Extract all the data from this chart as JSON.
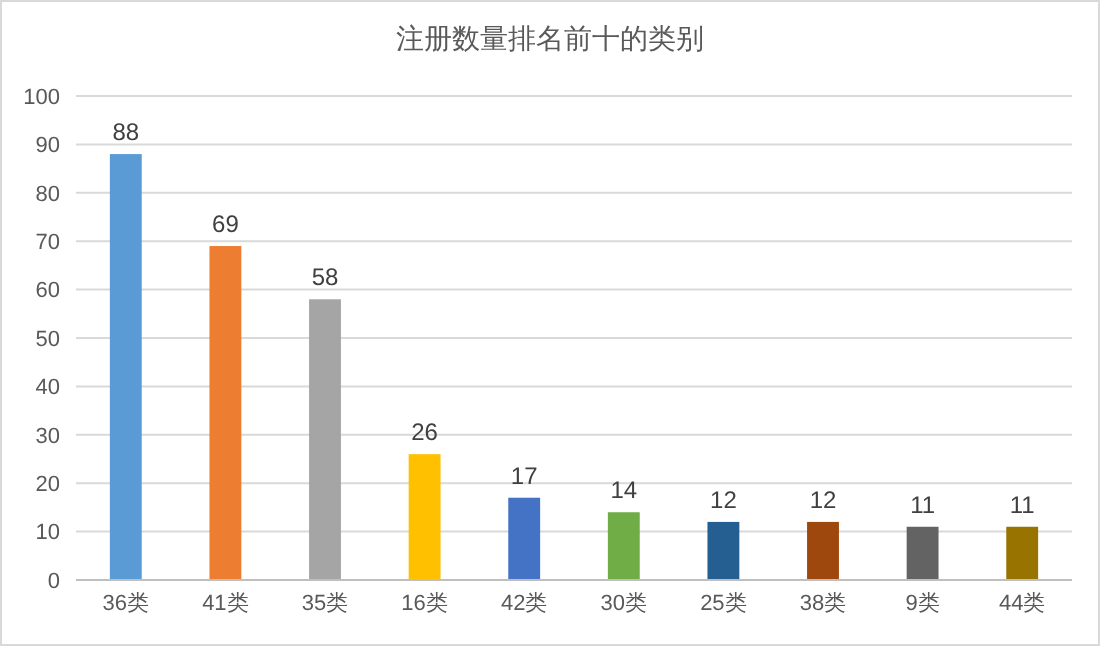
{
  "chart_data": {
    "type": "bar",
    "title": "注册数量排名前十的类别",
    "categories": [
      "36类",
      "41类",
      "35类",
      "16类",
      "42类",
      "30类",
      "25类",
      "38类",
      "9类",
      "44类"
    ],
    "values": [
      88,
      69,
      58,
      26,
      17,
      14,
      12,
      12,
      11,
      11
    ],
    "colors": [
      "#5b9bd5",
      "#ed7d31",
      "#a5a5a5",
      "#ffc000",
      "#4472c4",
      "#70ad47",
      "#255e91",
      "#9e480e",
      "#636363",
      "#997300"
    ],
    "ylim": [
      0,
      100
    ],
    "yticks": [
      0,
      10,
      20,
      30,
      40,
      50,
      60,
      70,
      80,
      90,
      100
    ],
    "grid": "y",
    "data_labels": true
  }
}
